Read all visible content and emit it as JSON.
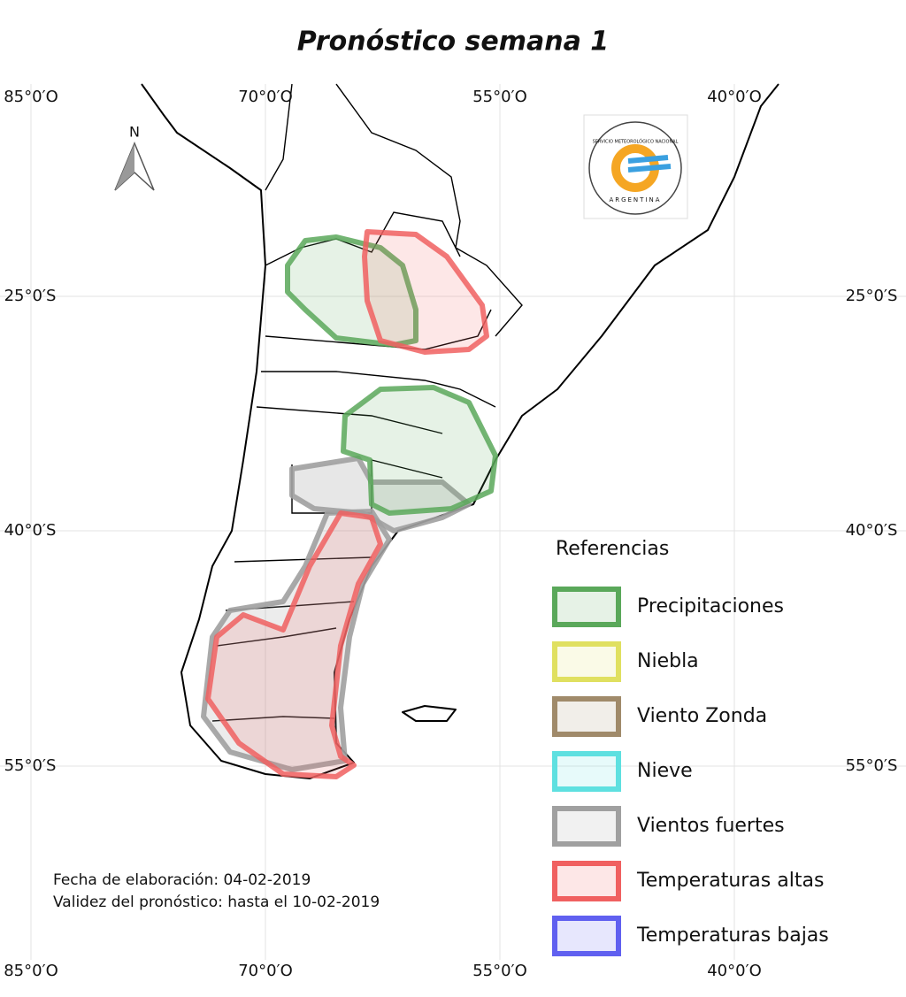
{
  "title": "Pronóstico semana 1",
  "graticule": {
    "lon_labels": [
      "85°0′O",
      "70°0′O",
      "55°0′O",
      "40°0′O"
    ],
    "lat_labels": [
      "25°0′S",
      "40°0′S",
      "55°0′S"
    ]
  },
  "north_arrow": "N",
  "logo": {
    "name": "SERVICIO METEOROLÓGICO NACIONAL",
    "country": "ARGENTINA"
  },
  "legend": {
    "title": "Referencias",
    "items": [
      {
        "name": "Precipitaciones",
        "color": "#5aa85a"
      },
      {
        "name": "Niebla",
        "color": "#e0e060"
      },
      {
        "name": "Viento Zonda",
        "color": "#a08a6a"
      },
      {
        "name": "Nieve",
        "color": "#5ee0e0"
      },
      {
        "name": "Vientos fuertes",
        "color": "#a0a0a0"
      },
      {
        "name": "Temperaturas altas",
        "color": "#f06060"
      },
      {
        "name": "Temperaturas bajas",
        "color": "#6060f0"
      }
    ]
  },
  "footer": {
    "created": "Fecha de elaboración: 04-02-2019",
    "validity": "Validez del pronóstico: hasta el 10-02-2019"
  }
}
